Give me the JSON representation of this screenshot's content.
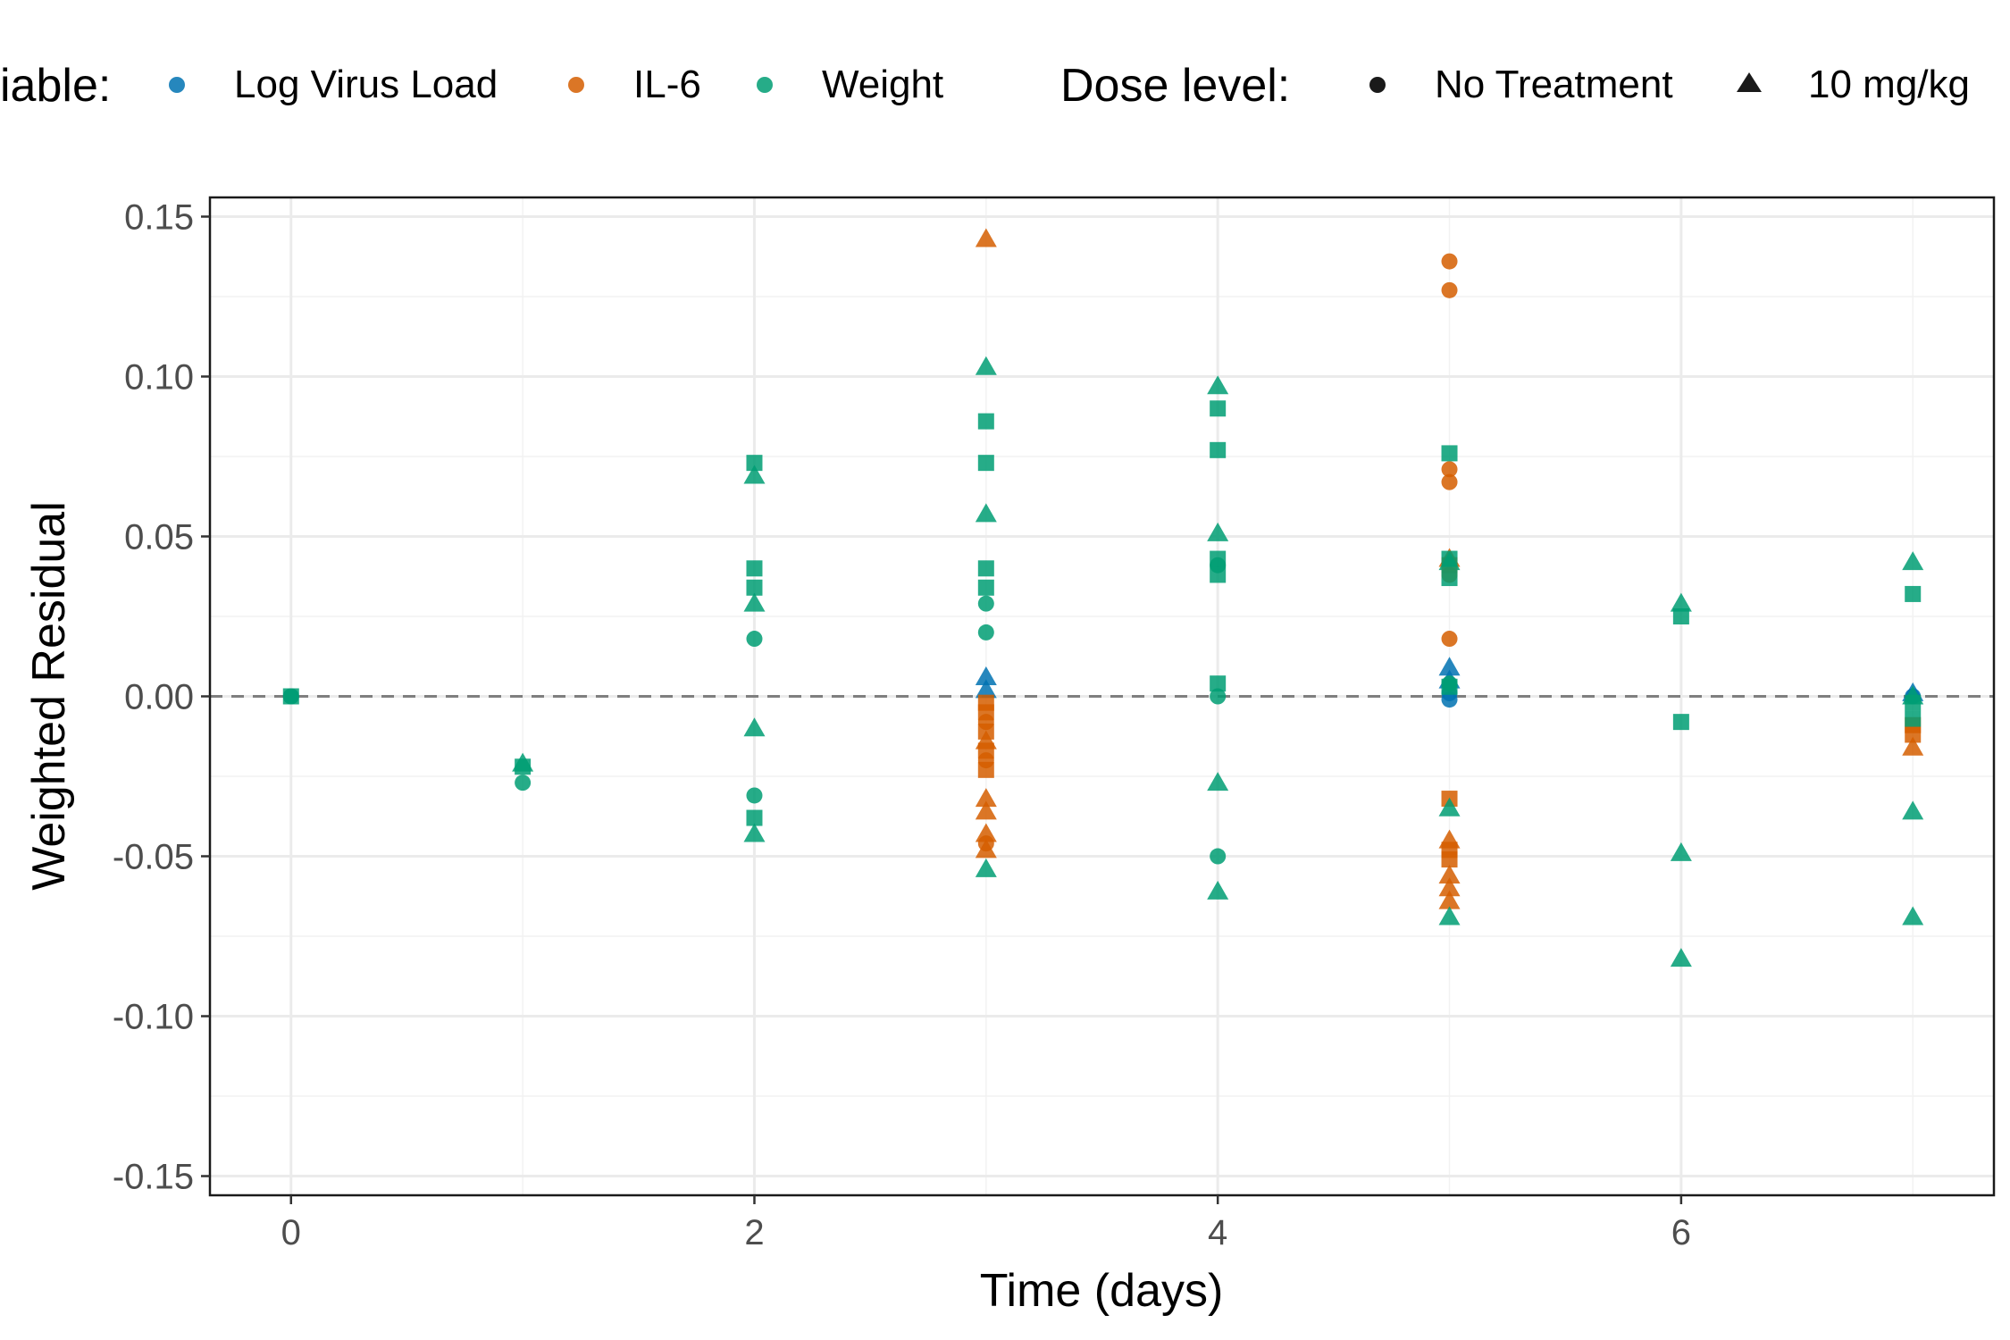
{
  "chart_data": {
    "type": "scatter",
    "xlabel": "Time (days)",
    "ylabel": "Weighted Residual",
    "xlim": [
      -0.35,
      7.35
    ],
    "ylim": [
      -0.156,
      0.156
    ],
    "x_ticks": [
      0,
      2,
      4,
      6
    ],
    "x_tick_labels": [
      "0",
      "2",
      "4",
      "6"
    ],
    "y_ticks": [
      0.15,
      0.1,
      0.05,
      0.0,
      -0.05,
      -0.1,
      -0.15
    ],
    "y_tick_labels": [
      "0.15",
      "0.10",
      "0.05",
      "0.00",
      "-0.05",
      "-0.10",
      "-0.15"
    ],
    "grid": true,
    "reference_line": {
      "y": 0,
      "style": "dashed",
      "color": "#7f7f7f"
    },
    "legend": {
      "placement": "top",
      "groups": [
        {
          "title": "iable:",
          "entries": [
            {
              "label": "Log Virus Load",
              "color": "#0072B2",
              "shape": "circle"
            },
            {
              "label": "IL-6",
              "color": "#D55E00",
              "shape": "circle"
            },
            {
              "label": "Weight",
              "color": "#009E73",
              "shape": "circle"
            }
          ]
        },
        {
          "title": "Dose level:",
          "entries": [
            {
              "label": "No Treatment",
              "color": "#1a1a1a",
              "shape": "circle"
            },
            {
              "label": "10 mg/kg",
              "color": "#1a1a1a",
              "shape": "triangle"
            }
          ]
        }
      ]
    },
    "series": [
      {
        "name": "Log Virus Load",
        "color": "#0072B2",
        "points": [
          {
            "x": 0,
            "y": 0.0,
            "shape": "circle"
          },
          {
            "x": 3,
            "y": 0.006,
            "shape": "triangle"
          },
          {
            "x": 3,
            "y": 0.002,
            "shape": "triangle"
          },
          {
            "x": 5,
            "y": 0.009,
            "shape": "triangle"
          },
          {
            "x": 5,
            "y": 0.005,
            "shape": "triangle"
          },
          {
            "x": 5,
            "y": 0.001,
            "shape": "circle"
          },
          {
            "x": 5,
            "y": -0.001,
            "shape": "circle"
          },
          {
            "x": 7,
            "y": 0.001,
            "shape": "triangle"
          },
          {
            "x": 7,
            "y": 0.0,
            "shape": "circle"
          }
        ]
      },
      {
        "name": "IL-6",
        "color": "#D55E00",
        "points": [
          {
            "x": 3,
            "y": 0.143,
            "shape": "triangle"
          },
          {
            "x": 3,
            "y": -0.002,
            "shape": "square"
          },
          {
            "x": 3,
            "y": -0.005,
            "shape": "square"
          },
          {
            "x": 3,
            "y": -0.008,
            "shape": "circle"
          },
          {
            "x": 3,
            "y": -0.011,
            "shape": "square"
          },
          {
            "x": 3,
            "y": -0.014,
            "shape": "triangle"
          },
          {
            "x": 3,
            "y": -0.017,
            "shape": "square"
          },
          {
            "x": 3,
            "y": -0.02,
            "shape": "circle"
          },
          {
            "x": 3,
            "y": -0.023,
            "shape": "square"
          },
          {
            "x": 3,
            "y": -0.032,
            "shape": "triangle"
          },
          {
            "x": 3,
            "y": -0.036,
            "shape": "triangle"
          },
          {
            "x": 3,
            "y": -0.043,
            "shape": "triangle"
          },
          {
            "x": 3,
            "y": -0.046,
            "shape": "circle"
          },
          {
            "x": 3,
            "y": -0.048,
            "shape": "triangle"
          },
          {
            "x": 5,
            "y": 0.136,
            "shape": "circle"
          },
          {
            "x": 5,
            "y": 0.127,
            "shape": "circle"
          },
          {
            "x": 5,
            "y": 0.071,
            "shape": "circle"
          },
          {
            "x": 5,
            "y": 0.067,
            "shape": "circle"
          },
          {
            "x": 5,
            "y": 0.043,
            "shape": "triangle"
          },
          {
            "x": 5,
            "y": 0.041,
            "shape": "square"
          },
          {
            "x": 5,
            "y": 0.038,
            "shape": "circle"
          },
          {
            "x": 5,
            "y": 0.018,
            "shape": "circle"
          },
          {
            "x": 5,
            "y": -0.032,
            "shape": "square"
          },
          {
            "x": 5,
            "y": -0.045,
            "shape": "triangle"
          },
          {
            "x": 5,
            "y": -0.048,
            "shape": "square"
          },
          {
            "x": 5,
            "y": -0.051,
            "shape": "square"
          },
          {
            "x": 5,
            "y": -0.056,
            "shape": "triangle"
          },
          {
            "x": 5,
            "y": -0.06,
            "shape": "triangle"
          },
          {
            "x": 5,
            "y": -0.064,
            "shape": "triangle"
          },
          {
            "x": 7,
            "y": -0.009,
            "shape": "square"
          },
          {
            "x": 7,
            "y": -0.012,
            "shape": "square"
          },
          {
            "x": 7,
            "y": -0.016,
            "shape": "triangle"
          }
        ]
      },
      {
        "name": "Weight",
        "color": "#009E73",
        "points": [
          {
            "x": 0,
            "y": 0.0,
            "shape": "circle"
          },
          {
            "x": 0,
            "y": 0.0,
            "shape": "square"
          },
          {
            "x": 1,
            "y": -0.021,
            "shape": "triangle"
          },
          {
            "x": 1,
            "y": -0.022,
            "shape": "square"
          },
          {
            "x": 1,
            "y": -0.027,
            "shape": "circle"
          },
          {
            "x": 2,
            "y": 0.073,
            "shape": "square"
          },
          {
            "x": 2,
            "y": 0.069,
            "shape": "triangle"
          },
          {
            "x": 2,
            "y": 0.04,
            "shape": "square"
          },
          {
            "x": 2,
            "y": 0.034,
            "shape": "square"
          },
          {
            "x": 2,
            "y": 0.029,
            "shape": "triangle"
          },
          {
            "x": 2,
            "y": 0.018,
            "shape": "circle"
          },
          {
            "x": 2,
            "y": -0.01,
            "shape": "triangle"
          },
          {
            "x": 2,
            "y": -0.031,
            "shape": "circle"
          },
          {
            "x": 2,
            "y": -0.038,
            "shape": "square"
          },
          {
            "x": 2,
            "y": -0.043,
            "shape": "triangle"
          },
          {
            "x": 3,
            "y": 0.103,
            "shape": "triangle"
          },
          {
            "x": 3,
            "y": 0.086,
            "shape": "square"
          },
          {
            "x": 3,
            "y": 0.073,
            "shape": "square"
          },
          {
            "x": 3,
            "y": 0.057,
            "shape": "triangle"
          },
          {
            "x": 3,
            "y": 0.04,
            "shape": "square"
          },
          {
            "x": 3,
            "y": 0.034,
            "shape": "square"
          },
          {
            "x": 3,
            "y": 0.029,
            "shape": "circle"
          },
          {
            "x": 3,
            "y": 0.02,
            "shape": "circle"
          },
          {
            "x": 3,
            "y": -0.054,
            "shape": "triangle"
          },
          {
            "x": 4,
            "y": 0.097,
            "shape": "triangle"
          },
          {
            "x": 4,
            "y": 0.09,
            "shape": "square"
          },
          {
            "x": 4,
            "y": 0.077,
            "shape": "square"
          },
          {
            "x": 4,
            "y": 0.051,
            "shape": "triangle"
          },
          {
            "x": 4,
            "y": 0.043,
            "shape": "square"
          },
          {
            "x": 4,
            "y": 0.041,
            "shape": "circle"
          },
          {
            "x": 4,
            "y": 0.038,
            "shape": "square"
          },
          {
            "x": 4,
            "y": 0.004,
            "shape": "square"
          },
          {
            "x": 4,
            "y": 0.0,
            "shape": "circle"
          },
          {
            "x": 4,
            "y": -0.027,
            "shape": "triangle"
          },
          {
            "x": 4,
            "y": -0.05,
            "shape": "circle"
          },
          {
            "x": 4,
            "y": -0.061,
            "shape": "triangle"
          },
          {
            "x": 5,
            "y": 0.076,
            "shape": "square"
          },
          {
            "x": 5,
            "y": 0.043,
            "shape": "square"
          },
          {
            "x": 5,
            "y": 0.042,
            "shape": "triangle"
          },
          {
            "x": 5,
            "y": 0.037,
            "shape": "square"
          },
          {
            "x": 5,
            "y": 0.004,
            "shape": "circle"
          },
          {
            "x": 5,
            "y": 0.003,
            "shape": "square"
          },
          {
            "x": 5,
            "y": -0.035,
            "shape": "triangle"
          },
          {
            "x": 5,
            "y": -0.069,
            "shape": "triangle"
          },
          {
            "x": 6,
            "y": 0.029,
            "shape": "triangle"
          },
          {
            "x": 6,
            "y": 0.025,
            "shape": "square"
          },
          {
            "x": 6,
            "y": -0.008,
            "shape": "square"
          },
          {
            "x": 6,
            "y": -0.049,
            "shape": "triangle"
          },
          {
            "x": 6,
            "y": -0.082,
            "shape": "triangle"
          },
          {
            "x": 7,
            "y": 0.042,
            "shape": "triangle"
          },
          {
            "x": 7,
            "y": 0.032,
            "shape": "square"
          },
          {
            "x": 7,
            "y": 0.0,
            "shape": "triangle"
          },
          {
            "x": 7,
            "y": -0.002,
            "shape": "square"
          },
          {
            "x": 7,
            "y": -0.007,
            "shape": "square"
          },
          {
            "x": 7,
            "y": -0.036,
            "shape": "triangle"
          },
          {
            "x": 7,
            "y": -0.069,
            "shape": "triangle"
          }
        ]
      }
    ]
  }
}
